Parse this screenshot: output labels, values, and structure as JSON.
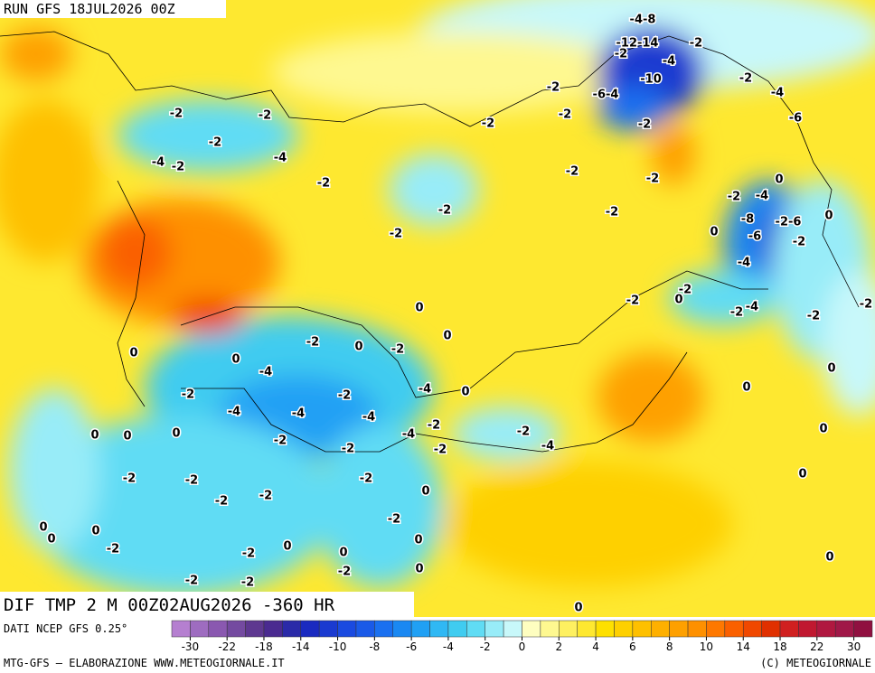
{
  "header": {
    "run": "RUN GFS 18JUL2026 00Z"
  },
  "title": "DIF TMP 2 M 00Z02AUG2026 -360 HR",
  "contour_labels": [
    "-4-8",
    "-12-14",
    "-2",
    "-2",
    "-4",
    "-10",
    "-2",
    "-6-4",
    "-2",
    "-4",
    "-6",
    "-2",
    "-2",
    "-2",
    "-2",
    "-2",
    "-2",
    "-4",
    "-2",
    "-4",
    "-2",
    "-2",
    "-2",
    "0",
    "-2",
    "-4",
    "-2",
    "-2",
    "0",
    "-8",
    "-2-6",
    "-2",
    "0",
    "-6",
    "-2",
    "-4",
    "-2",
    "-2",
    "0",
    "-4",
    "-2",
    "-2",
    "-2",
    "0",
    "-2",
    "0",
    "0",
    "-2",
    "0",
    "0",
    "-4",
    "0",
    "-4",
    "0",
    "0",
    "-2",
    "-2",
    "-4",
    "-4",
    "-4",
    "-2",
    "-2",
    "-4",
    "0",
    "0",
    "0",
    "-2",
    "-2",
    "-2",
    "-4",
    "0",
    "0",
    "-2",
    "-2",
    "-2",
    "0",
    "-2",
    "-2",
    "-2",
    "0",
    "0",
    "0",
    "0",
    "-2",
    "0",
    "-2",
    "0",
    "0",
    "-2",
    "0",
    "-2",
    "-2",
    "0"
  ],
  "colorbar": {
    "ticks": [
      -30,
      -22,
      -18,
      -14,
      -10,
      -8,
      -6,
      -4,
      -2,
      0,
      2,
      4,
      6,
      8,
      10,
      14,
      18,
      22,
      30
    ],
    "colors": [
      "#b57fd0",
      "#9e6cc0",
      "#8a58b0",
      "#744aa0",
      "#5e3890",
      "#4a2a90",
      "#2a2aa8",
      "#1a2ac0",
      "#1a3ad0",
      "#1a4ae0",
      "#1a5ae8",
      "#1a70f0",
      "#1a88f2",
      "#20a0f4",
      "#30b8f4",
      "#40ccf0",
      "#60dcf4",
      "#98ecf8",
      "#c8f8fa",
      "#fefec0",
      "#fef890",
      "#fef060",
      "#fee830",
      "#fee000",
      "#fed000",
      "#fec000",
      "#feb000",
      "#fea000",
      "#fe9000",
      "#fe7800",
      "#fa6000",
      "#f04800",
      "#e03000",
      "#d02020",
      "#c01830",
      "#b01840",
      "#a01848",
      "#901040"
    ]
  },
  "footer": {
    "source": "DATI NCEP GFS 0.25°",
    "credit": "MTG-GFS — ELABORAZIONE WWW.METEOGIORNALE.IT",
    "copyright": "(C) METEOGIORNALE"
  }
}
